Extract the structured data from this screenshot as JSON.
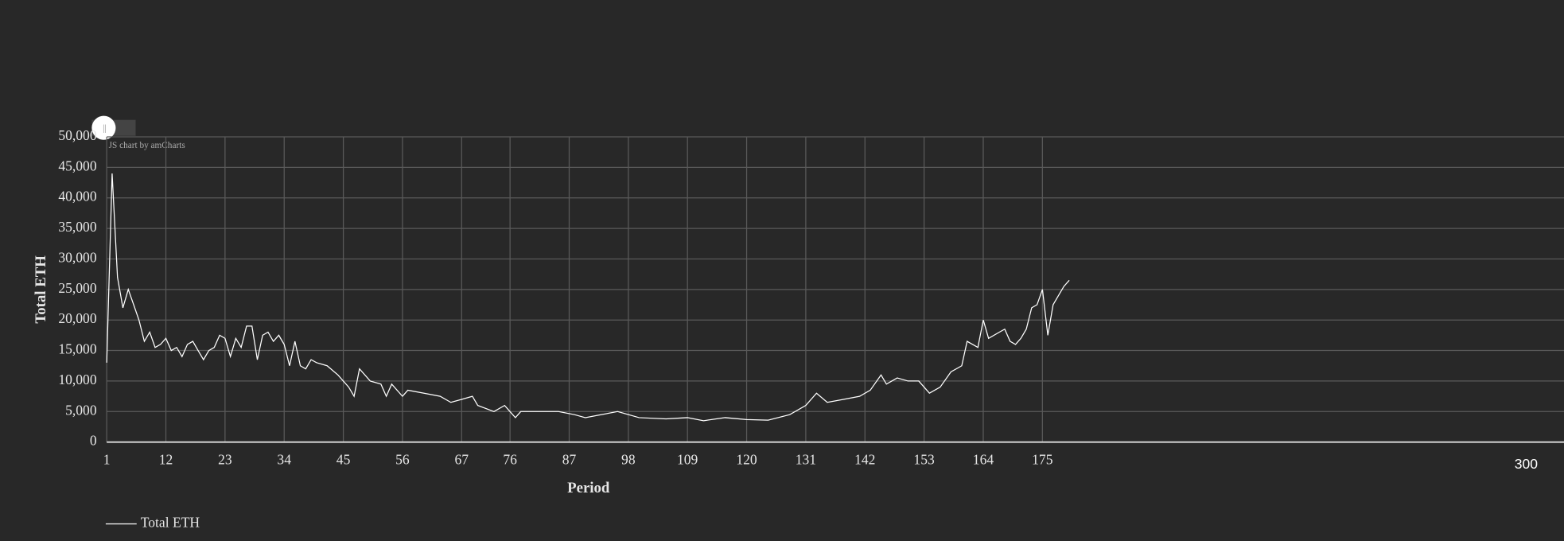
{
  "chart_data": {
    "type": "line",
    "y_label": "Total ETH",
    "x_label": "Period",
    "watermark": "JS chart by amCharts",
    "annotation": "300",
    "xlim": [
      1,
      272
    ],
    "xticks": [
      1,
      12,
      23,
      34,
      45,
      56,
      67,
      76,
      87,
      98,
      109,
      120,
      131,
      142,
      153,
      164,
      175
    ],
    "ylim": [
      0,
      50000
    ],
    "yticks": [
      0,
      {
        "value": 5000,
        "label": "5,000"
      },
      {
        "value": 10000,
        "label": "10,000"
      },
      {
        "value": 15000,
        "label": "15,000"
      },
      {
        "value": 20000,
        "label": "20,000"
      },
      {
        "value": 25000,
        "label": "25,000"
      },
      {
        "value": 30000,
        "label": "30,000"
      },
      {
        "value": 35000,
        "label": "35,000"
      },
      {
        "value": 40000,
        "label": "40,000"
      },
      {
        "value": 45000,
        "label": "45,000"
      },
      {
        "value": 50000,
        "label": "50,000"
      }
    ],
    "grid": true,
    "legend": "bottom-left",
    "series": [
      {
        "name": "Total ETH",
        "color": "#ffffff",
        "x": [
          1,
          2,
          3,
          4,
          5,
          6,
          7,
          8,
          9,
          10,
          11,
          12,
          13,
          14,
          15,
          16,
          17,
          18,
          19,
          20,
          21,
          22,
          23,
          24,
          25,
          26,
          27,
          28,
          29,
          30,
          31,
          32,
          33,
          34,
          35,
          36,
          37,
          38,
          39,
          40,
          42,
          44,
          46,
          47,
          48,
          50,
          52,
          53,
          54,
          56,
          57,
          60,
          63,
          65,
          67,
          69,
          70,
          73,
          75,
          76,
          77,
          78,
          82,
          85,
          88,
          90,
          93,
          96,
          100,
          105,
          109,
          112,
          116,
          120,
          124,
          128,
          131,
          133,
          135,
          138,
          141,
          143,
          145,
          146,
          148,
          150,
          152,
          154,
          156,
          158,
          160,
          161,
          163,
          164,
          165,
          167,
          168,
          169,
          170,
          171,
          172,
          173,
          174,
          175,
          176,
          177,
          178,
          179,
          180
        ],
        "values": [
          13000,
          44000,
          27000,
          22000,
          25000,
          22500,
          20000,
          16500,
          18000,
          15500,
          16000,
          17000,
          15000,
          15500,
          14000,
          16000,
          16500,
          15000,
          13500,
          15000,
          15500,
          17500,
          17000,
          14000,
          17000,
          15500,
          19000,
          19000,
          13500,
          17500,
          18000,
          16500,
          17500,
          16000,
          12500,
          16500,
          12500,
          12000,
          13500,
          13000,
          12500,
          11000,
          9000,
          7500,
          12000,
          10000,
          9500,
          7500,
          9500,
          7500,
          8500,
          8000,
          7500,
          6500,
          7000,
          7500,
          6000,
          5000,
          6000,
          5000,
          4000,
          5000,
          5000,
          5000,
          4500,
          4000,
          4500,
          5000,
          4000,
          3800,
          4000,
          3500,
          4000,
          3700,
          3600,
          4500,
          6000,
          8000,
          6500,
          7000,
          7500,
          8500,
          11000,
          9500,
          10500,
          10000,
          10000,
          8000,
          9000,
          11500,
          12500,
          16500,
          15500,
          20000,
          17000,
          18000,
          18500,
          16500,
          16000,
          17000,
          18500,
          22000,
          22500,
          25000,
          17500,
          22500,
          24000,
          25500,
          26500
        ]
      }
    ]
  }
}
